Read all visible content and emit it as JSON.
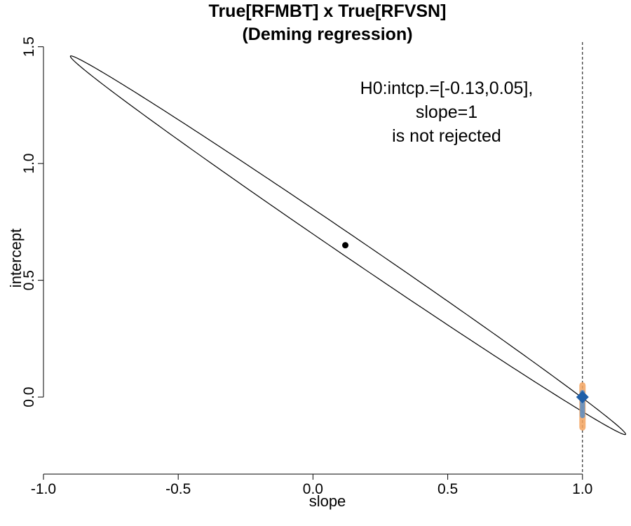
{
  "chart_data": {
    "type": "scatter",
    "title": "True[RFMBT] x True[RFVSN]",
    "subtitle": "(Deming regression)",
    "xlabel": "slope",
    "ylabel": "intercept",
    "xlim": [
      -1.0,
      1.05
    ],
    "ylim": [
      -0.33,
      1.52
    ],
    "x_ticks": [
      -1.0,
      -0.5,
      0.0,
      0.5,
      1.0
    ],
    "x_tick_labels": [
      "-1.0",
      "-0.5",
      "0.0",
      "0.5",
      "1.0"
    ],
    "y_ticks": [
      0.0,
      0.5,
      1.0,
      1.5
    ],
    "y_tick_labels": [
      "0.0",
      "0.5",
      "1.0",
      "1.5"
    ],
    "grid": false,
    "estimate": {
      "slope": 0.12,
      "intercept": 0.65
    },
    "confidence_ellipse": {
      "end_a": {
        "slope": -0.9,
        "intercept": 1.46
      },
      "end_b": {
        "slope": 1.16,
        "intercept": -0.16
      },
      "half_width": 0.045
    },
    "reference_line": {
      "slope": 1.0
    },
    "h0_point": {
      "slope": 1.0,
      "intercept": 0.0
    },
    "h0_intercept_interval": [
      -0.13,
      0.05
    ],
    "h0_inner_interval": [
      -0.08,
      0.02
    ],
    "colors": {
      "estimate": "#000000",
      "ellipse": "#000000",
      "h0_outer": "#f4a460",
      "h0_inner": "#5b8fc7",
      "h0_point": "#1f5fa8"
    },
    "annotation": [
      "H0:intcp.=[-0.13,0.05],",
      "slope=1",
      "is not rejected"
    ]
  }
}
